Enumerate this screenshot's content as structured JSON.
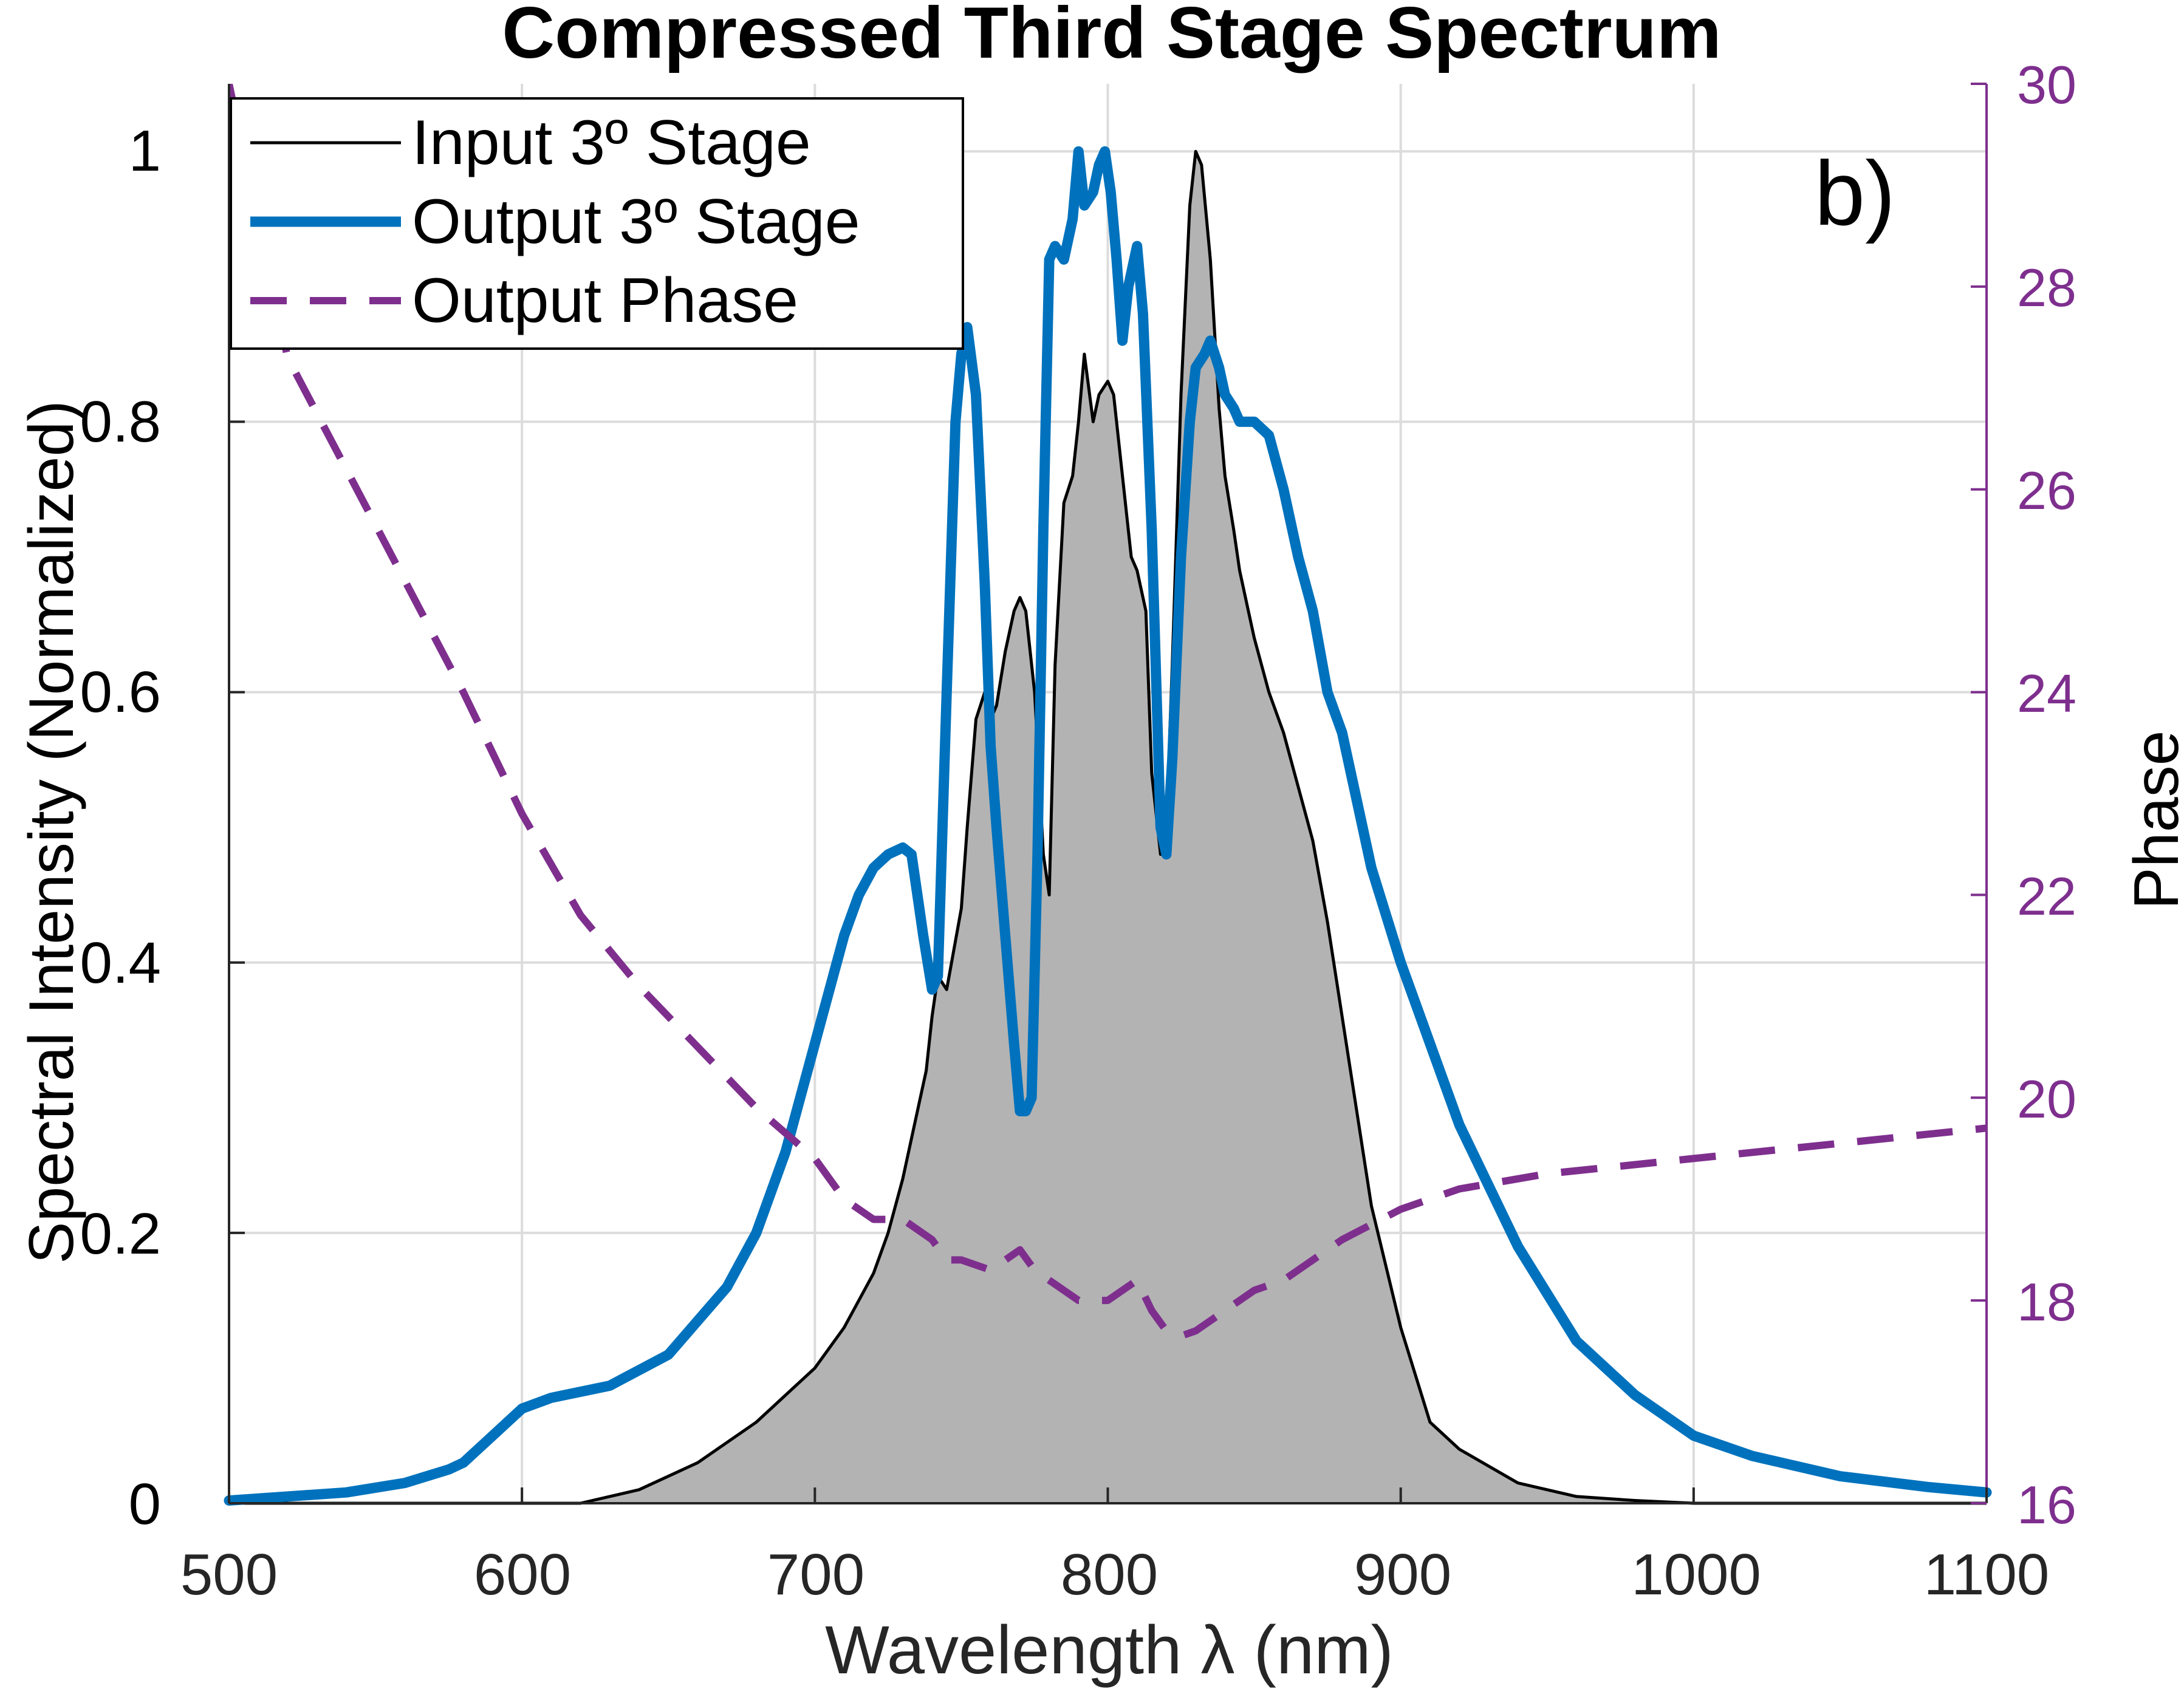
{
  "colors": {
    "input": "#000000",
    "output": "#0072BD",
    "phase": "#7E2F8E",
    "fill": "#b3b3b3"
  },
  "chart_data": {
    "type": "line",
    "title": "Compressed Third Stage Spectrum",
    "panel_label": "b)",
    "xlabel": "Wavelength λ (nm)",
    "ylabel": "Spectral Intensity (Normalized)",
    "ylabel_right": "Phase",
    "xlim": [
      500,
      1100
    ],
    "ylim": [
      0,
      1.05
    ],
    "ylim_right": [
      16,
      30
    ],
    "x_ticks": [
      "500",
      "600",
      "700",
      "800",
      "900",
      "1000",
      "1100"
    ],
    "y_ticks": [
      "0",
      "0.2",
      "0.4",
      "0.6",
      "0.8",
      "1"
    ],
    "y_ticks_right": [
      "16",
      "18",
      "20",
      "22",
      "24",
      "26",
      "28",
      "30"
    ],
    "grid": true,
    "legend_position": "top-left",
    "series": [
      {
        "name": "Input 3º Stage",
        "axis": "left",
        "style": "thin-solid-filled",
        "x": [
          500,
          620,
          640,
          660,
          680,
          700,
          710,
          720,
          725,
          730,
          735,
          738,
          740,
          742,
          745,
          750,
          752,
          755,
          758,
          760,
          762,
          765,
          768,
          770,
          772,
          775,
          778,
          780,
          782,
          785,
          788,
          790,
          792,
          795,
          797,
          800,
          802,
          805,
          808,
          810,
          813,
          815,
          818,
          820,
          822,
          825,
          828,
          830,
          832,
          835,
          838,
          840,
          843,
          845,
          848,
          850,
          855,
          860,
          865,
          870,
          875,
          880,
          885,
          890,
          900,
          910,
          920,
          940,
          960,
          980,
          1000,
          1100
        ],
        "values": [
          0,
          0,
          0.01,
          0.03,
          0.06,
          0.1,
          0.13,
          0.17,
          0.2,
          0.24,
          0.29,
          0.32,
          0.36,
          0.39,
          0.38,
          0.44,
          0.5,
          0.58,
          0.6,
          0.58,
          0.59,
          0.63,
          0.66,
          0.67,
          0.66,
          0.6,
          0.48,
          0.45,
          0.62,
          0.74,
          0.76,
          0.8,
          0.85,
          0.8,
          0.82,
          0.83,
          0.82,
          0.76,
          0.7,
          0.69,
          0.66,
          0.54,
          0.48,
          0.5,
          0.62,
          0.82,
          0.96,
          1.0,
          0.99,
          0.92,
          0.81,
          0.76,
          0.72,
          0.69,
          0.66,
          0.64,
          0.6,
          0.57,
          0.53,
          0.49,
          0.43,
          0.36,
          0.29,
          0.22,
          0.13,
          0.06,
          0.04,
          0.015,
          0.005,
          0.002,
          0,
          0
        ]
      },
      {
        "name": "Output 3º Stage",
        "axis": "left",
        "style": "thick-solid",
        "x": [
          500,
          540,
          560,
          575,
          580,
          585,
          590,
          595,
          600,
          610,
          630,
          650,
          670,
          680,
          690,
          700,
          705,
          710,
          715,
          720,
          725,
          730,
          733,
          735,
          737,
          740,
          742,
          745,
          748,
          750,
          752,
          755,
          758,
          760,
          762,
          765,
          768,
          770,
          772,
          774,
          776,
          778,
          780,
          782,
          785,
          788,
          790,
          792,
          795,
          797,
          799,
          801,
          803,
          805,
          807,
          810,
          812,
          815,
          818,
          820,
          822,
          825,
          828,
          830,
          833,
          835,
          838,
          840,
          843,
          845,
          850,
          855,
          860,
          865,
          870,
          875,
          880,
          885,
          890,
          900,
          920,
          940,
          960,
          980,
          1000,
          1020,
          1050,
          1080,
          1100
        ],
        "values": [
          0.002,
          0.008,
          0.015,
          0.025,
          0.03,
          0.04,
          0.05,
          0.06,
          0.07,
          0.078,
          0.087,
          0.11,
          0.16,
          0.2,
          0.26,
          0.34,
          0.38,
          0.42,
          0.45,
          0.47,
          0.48,
          0.485,
          0.48,
          0.45,
          0.42,
          0.38,
          0.39,
          0.6,
          0.8,
          0.85,
          0.87,
          0.82,
          0.68,
          0.56,
          0.5,
          0.42,
          0.34,
          0.29,
          0.29,
          0.3,
          0.48,
          0.72,
          0.92,
          0.93,
          0.92,
          0.95,
          1.0,
          0.96,
          0.97,
          0.99,
          1.0,
          0.97,
          0.92,
          0.86,
          0.9,
          0.93,
          0.88,
          0.72,
          0.5,
          0.48,
          0.55,
          0.7,
          0.8,
          0.84,
          0.85,
          0.86,
          0.84,
          0.82,
          0.81,
          0.8,
          0.8,
          0.79,
          0.75,
          0.7,
          0.66,
          0.6,
          0.57,
          0.52,
          0.47,
          0.4,
          0.28,
          0.19,
          0.12,
          0.08,
          0.05,
          0.035,
          0.02,
          0.012,
          0.008
        ]
      },
      {
        "name": "Output Phase",
        "axis": "right",
        "style": "dashed",
        "x": [
          500,
          520,
          540,
          560,
          580,
          600,
          620,
          640,
          660,
          680,
          700,
          710,
          720,
          730,
          740,
          745,
          750,
          760,
          770,
          775,
          780,
          785,
          790,
          800,
          810,
          815,
          820,
          825,
          830,
          835,
          840,
          850,
          860,
          870,
          880,
          900,
          920,
          950,
          1000,
          1050,
          1100
        ],
        "values": [
          30.0,
          27.3,
          26.2,
          25.1,
          24.0,
          22.8,
          21.8,
          21.1,
          20.5,
          19.9,
          19.4,
          19.0,
          18.8,
          18.8,
          18.6,
          18.4,
          18.4,
          18.3,
          18.5,
          18.3,
          18.2,
          18.1,
          18.0,
          18.0,
          18.2,
          17.9,
          17.7,
          17.65,
          17.7,
          17.8,
          17.9,
          18.1,
          18.2,
          18.4,
          18.6,
          18.9,
          19.1,
          19.25,
          19.4,
          19.55,
          19.7
        ]
      }
    ]
  }
}
